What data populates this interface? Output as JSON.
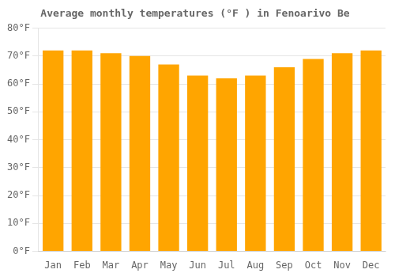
{
  "chart_data": {
    "type": "bar",
    "title": "Average monthly temperatures (°F ) in Fenoarivo Be",
    "categories": [
      "Jan",
      "Feb",
      "Mar",
      "Apr",
      "May",
      "Jun",
      "Jul",
      "Aug",
      "Sep",
      "Oct",
      "Nov",
      "Dec"
    ],
    "values": [
      72,
      72,
      71,
      70,
      67,
      63,
      62,
      63,
      66,
      69,
      71,
      72
    ],
    "color": "#FFA500",
    "ylim": [
      0,
      80
    ],
    "yticks": [
      {
        "value": 0,
        "label": "0°F"
      },
      {
        "value": 10,
        "label": "10°F"
      },
      {
        "value": 20,
        "label": "20°F"
      },
      {
        "value": 30,
        "label": "30°F"
      },
      {
        "value": 40,
        "label": "40°F"
      },
      {
        "value": 50,
        "label": "50°F"
      },
      {
        "value": 60,
        "label": "60°F"
      },
      {
        "value": 70,
        "label": "70°F"
      },
      {
        "value": 80,
        "label": "80°F"
      }
    ],
    "grid": true
  }
}
